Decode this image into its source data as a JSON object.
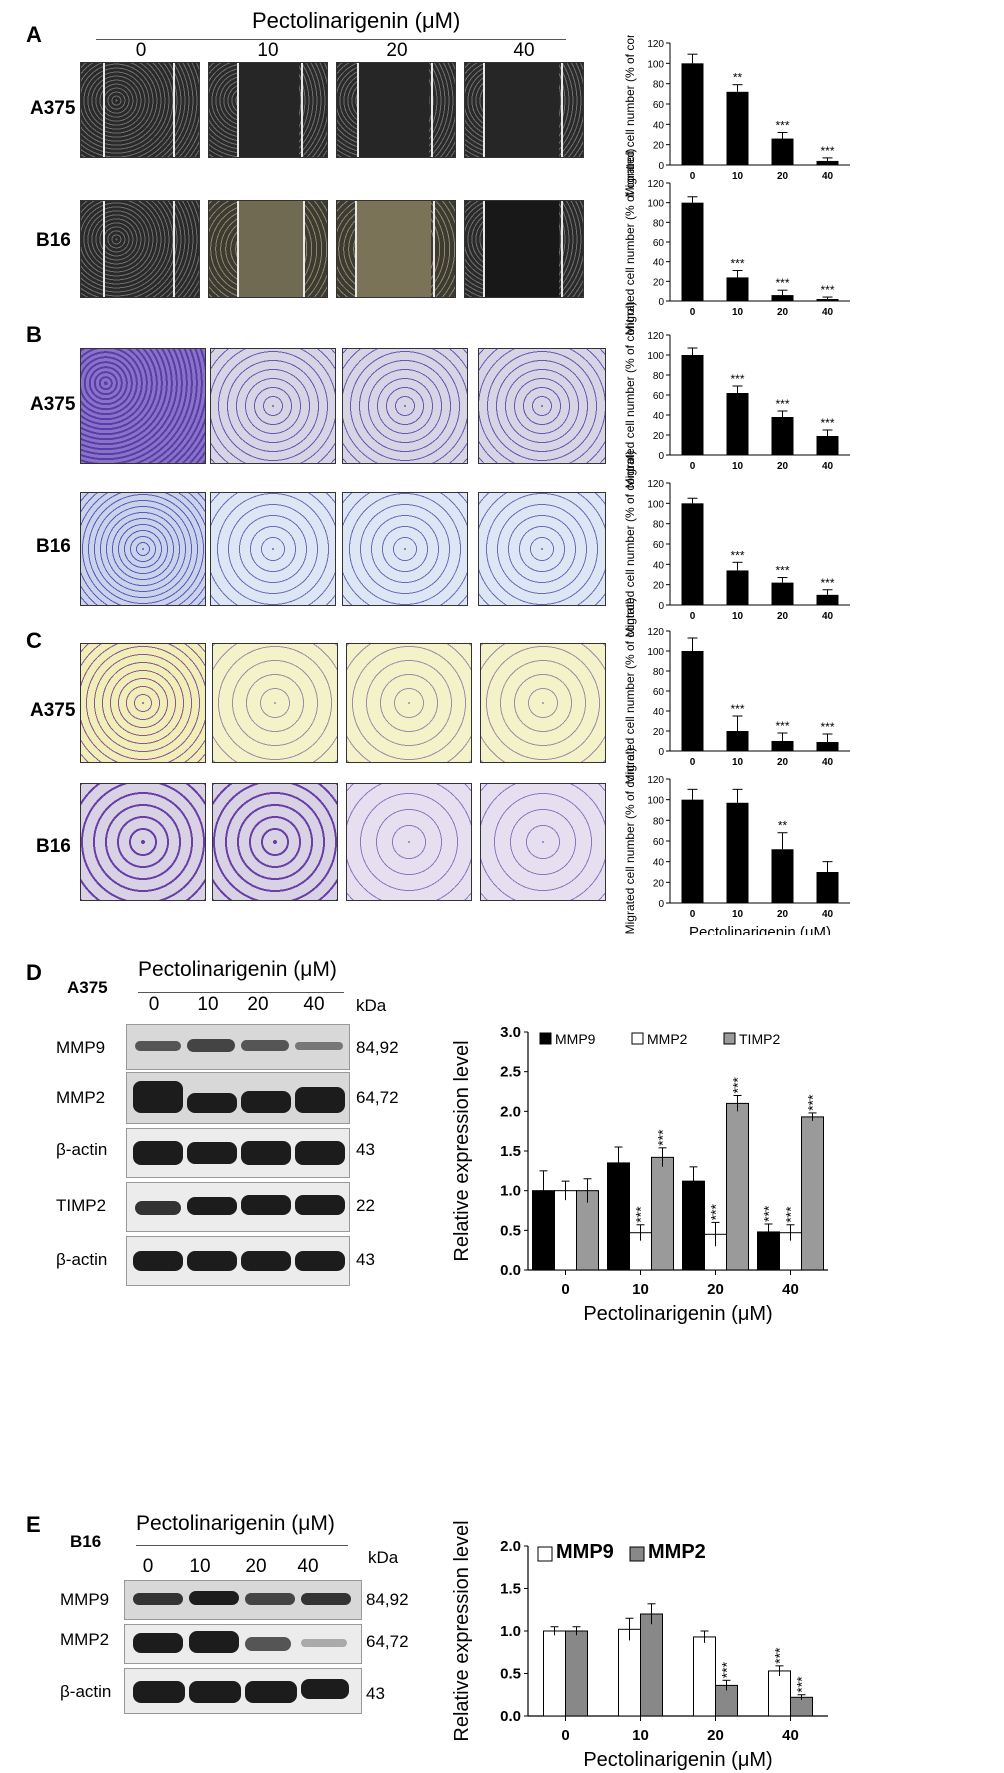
{
  "panels": {
    "A": {
      "letter": "A",
      "cells": [
        "A375",
        "B16"
      ]
    },
    "B": {
      "letter": "B",
      "cells": [
        "A375",
        "B16"
      ]
    },
    "C": {
      "letter": "C",
      "cells": [
        "A375",
        "B16"
      ]
    },
    "D": {
      "letter": "D",
      "cell": "A375"
    },
    "E": {
      "letter": "E",
      "cell": "B16"
    }
  },
  "header": {
    "title": "Pectolinarigenin (μM)",
    "concentrations": [
      "0",
      "10",
      "20",
      "40"
    ]
  },
  "blots": {
    "D": {
      "title": "Pectolinarigenin (μM)",
      "concentrations": [
        "0",
        "10",
        "20",
        "40"
      ],
      "kda_label": "kDa",
      "rows": [
        {
          "name": "MMP9",
          "kda": "84,92"
        },
        {
          "name": "MMP2",
          "kda": "64,72"
        },
        {
          "name": "β-actin",
          "kda": "43"
        },
        {
          "name": "TIMP2",
          "kda": "22"
        },
        {
          "name": "β-actin",
          "kda": "43"
        }
      ]
    },
    "E": {
      "title": "Pectolinarigenin (μM)",
      "concentrations": [
        "0",
        "10",
        "20",
        "40"
      ],
      "kda_label": "kDa",
      "rows": [
        {
          "name": "MMP9",
          "kda": "84,92"
        },
        {
          "name": "MMP2",
          "kda": "64,72"
        },
        {
          "name": "β-actin",
          "kda": "43"
        }
      ]
    }
  },
  "chart_data": [
    {
      "id": "A-A375",
      "type": "bar",
      "categories": [
        "0",
        "10",
        "20",
        "40"
      ],
      "values": [
        100,
        72,
        26,
        4
      ],
      "errors": [
        9,
        7,
        6,
        3
      ],
      "sig": [
        "",
        "**",
        "***",
        "***"
      ],
      "ylim": [
        0,
        120
      ],
      "yticks": [
        0,
        20,
        40,
        60,
        80,
        100,
        120
      ]
    },
    {
      "id": "A-B16",
      "type": "bar",
      "categories": [
        "0",
        "10",
        "20",
        "40"
      ],
      "values": [
        100,
        24,
        6,
        2
      ],
      "errors": [
        6,
        7,
        5,
        2
      ],
      "sig": [
        "",
        "***",
        "***",
        "***"
      ],
      "ylim": [
        0,
        120
      ],
      "yticks": [
        0,
        20,
        40,
        60,
        80,
        100,
        120
      ]
    },
    {
      "id": "B-A375",
      "type": "bar",
      "categories": [
        "0",
        "10",
        "20",
        "40"
      ],
      "values": [
        100,
        62,
        38,
        19
      ],
      "errors": [
        7,
        7,
        6,
        6
      ],
      "sig": [
        "",
        "***",
        "***",
        "***"
      ],
      "ylim": [
        0,
        120
      ],
      "yticks": [
        0,
        20,
        40,
        60,
        80,
        100,
        120
      ]
    },
    {
      "id": "B-B16",
      "type": "bar",
      "categories": [
        "0",
        "10",
        "20",
        "40"
      ],
      "values": [
        100,
        34,
        22,
        10
      ],
      "errors": [
        5,
        8,
        5,
        5
      ],
      "sig": [
        "",
        "***",
        "***",
        "***"
      ],
      "ylim": [
        0,
        120
      ],
      "yticks": [
        0,
        20,
        40,
        60,
        80,
        100,
        120
      ]
    },
    {
      "id": "C-A375",
      "type": "bar",
      "categories": [
        "0",
        "10",
        "20",
        "40"
      ],
      "values": [
        100,
        20,
        10,
        9
      ],
      "errors": [
        13,
        15,
        8,
        8
      ],
      "sig": [
        "",
        "***",
        "***",
        "***"
      ],
      "ylim": [
        0,
        120
      ],
      "yticks": [
        0,
        20,
        40,
        60,
        80,
        100,
        120
      ]
    },
    {
      "id": "C-B16",
      "type": "bar",
      "categories": [
        "0",
        "10",
        "20",
        "40"
      ],
      "values": [
        100,
        97,
        52,
        30
      ],
      "errors": [
        10,
        13,
        16,
        10
      ],
      "sig": [
        "",
        "",
        "**",
        ""
      ],
      "ylim": [
        0,
        120
      ],
      "yticks": [
        0,
        20,
        40,
        60,
        80,
        100,
        120
      ],
      "xlabel": "Pectolinarigenin (μM)"
    },
    {
      "id": "D",
      "type": "bar",
      "categories": [
        "0",
        "10",
        "20",
        "40"
      ],
      "series": [
        {
          "name": "MMP9",
          "values": [
            1.0,
            1.35,
            1.12,
            0.48
          ],
          "errors": [
            0.25,
            0.2,
            0.18,
            0.1
          ],
          "sig": [
            "",
            "",
            "",
            "***"
          ]
        },
        {
          "name": "MMP2",
          "values": [
            1.0,
            0.47,
            0.45,
            0.47
          ],
          "errors": [
            0.12,
            0.1,
            0.15,
            0.1
          ],
          "sig": [
            "",
            "***",
            "***",
            "***"
          ]
        },
        {
          "name": "TIMP2",
          "values": [
            1.0,
            1.42,
            2.1,
            1.93
          ],
          "errors": [
            0.15,
            0.12,
            0.1,
            0.05
          ],
          "sig": [
            "",
            "***",
            "***",
            "***"
          ]
        }
      ],
      "ylim": [
        0,
        3.0
      ],
      "yticks": [
        0.0,
        0.5,
        1.0,
        1.5,
        2.0,
        2.5,
        3.0
      ],
      "ylabel": "Relative expression level",
      "xlabel": "Pectolinarigenin (μM)"
    },
    {
      "id": "E",
      "type": "bar",
      "categories": [
        "0",
        "10",
        "20",
        "40"
      ],
      "series": [
        {
          "name": "MMP9",
          "values": [
            1.0,
            1.02,
            0.93,
            0.53
          ],
          "errors": [
            0.05,
            0.13,
            0.07,
            0.06
          ],
          "sig": [
            "",
            "",
            "",
            "***"
          ]
        },
        {
          "name": "MMP2",
          "values": [
            1.0,
            1.2,
            0.36,
            0.22
          ],
          "errors": [
            0.05,
            0.12,
            0.06,
            0.03
          ],
          "sig": [
            "",
            "",
            "***",
            "***"
          ]
        }
      ],
      "ylim": [
        0,
        2.0
      ],
      "yticks": [
        0.0,
        0.5,
        1.0,
        1.5,
        2.0
      ],
      "ylabel": "Relative expression level",
      "xlabel": "Pectolinarigenin (μM)"
    }
  ],
  "small_ylabel": "Migrated cell number (% of control)"
}
